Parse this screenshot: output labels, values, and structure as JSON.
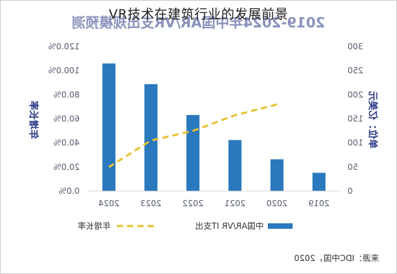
{
  "page": {
    "title": "VR技术在建筑行业的发展前景"
  },
  "chart_data": {
    "type": "bar",
    "mirrored": true,
    "title": "2019-2024年中国AR/VR支出规模预测",
    "categories": [
      "2019",
      "2020",
      "2021",
      "2022",
      "2023",
      "2024"
    ],
    "series": [
      {
        "name": "中国AR/VR IT支出",
        "type": "bar",
        "axis": "right",
        "color": "#2a78bd",
        "values": [
          38,
          66,
          106,
          158,
          222,
          265
        ]
      },
      {
        "name": "年增长率",
        "type": "line",
        "axis": "left",
        "color": "#e8c12f",
        "dashed": true,
        "values": [
          null,
          0.72,
          0.63,
          0.5,
          0.42,
          0.2
        ]
      }
    ],
    "right_axis": {
      "label": "单位：亿美元",
      "ylim": [
        0,
        300
      ],
      "ticks": [
        "0",
        "50",
        "100",
        "150",
        "200",
        "250",
        "300"
      ]
    },
    "left_axis": {
      "label": "年增长率",
      "ylim": [
        0,
        1.2
      ],
      "ticks": [
        "0.0%",
        "20.0%",
        "40.0%",
        "60.0%",
        "80.0%",
        "100.0%",
        "120.0%"
      ]
    },
    "grid": false,
    "legend_position": "bottom",
    "source": "来源：IDC中国，2020"
  }
}
